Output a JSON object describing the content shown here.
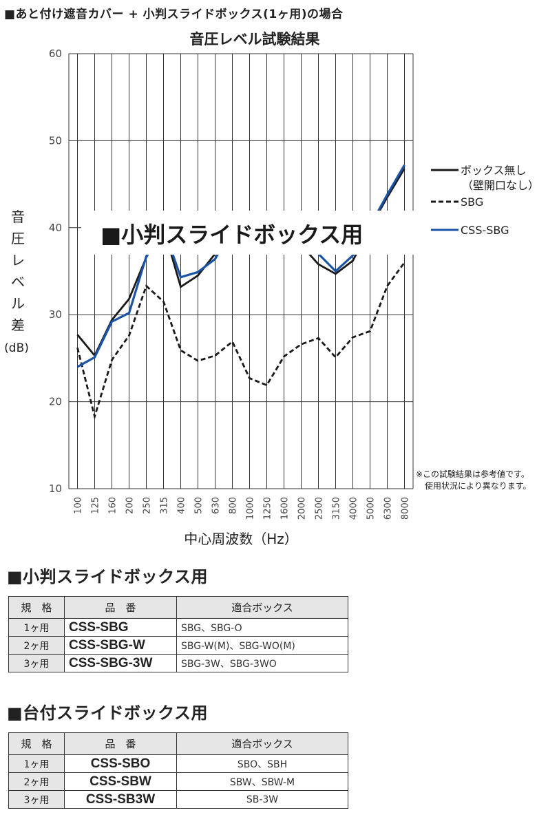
{
  "top_heading": "■あと付け遮音カバー + 小判スライドボックス(1ヶ用)の場合",
  "chart_data": {
    "type": "line",
    "title": "音圧レベル試験結果",
    "xlabel": "中心周波数（Hz）",
    "ylabel": [
      "音",
      "圧",
      "レ",
      "ベ",
      "ル",
      "差",
      "(dB)"
    ],
    "ylim": [
      10,
      60
    ],
    "yticks": [
      10,
      20,
      30,
      40,
      50,
      60
    ],
    "grid": true,
    "categories": [
      "100",
      "125",
      "160",
      "200",
      "250",
      "315",
      "400",
      "500",
      "630",
      "800",
      "1000",
      "1250",
      "1600",
      "2000",
      "2500",
      "3150",
      "4000",
      "5000",
      "6300",
      "8000"
    ],
    "series": [
      {
        "name": "ボックス無し\n（壁開口なし）",
        "legend_lines": [
          "ボックス無し",
          "（壁開口なし）"
        ],
        "style": "solid",
        "color": "#1a1a1a",
        "values": [
          27.7,
          25.3,
          29.4,
          31.8,
          36.6,
          40.0,
          33.2,
          34.5,
          37.0,
          40.0,
          41.0,
          40.0,
          39.0,
          38.0,
          35.8,
          34.7,
          36.2,
          40.0,
          43.5,
          46.8
        ]
      },
      {
        "name": "SBG",
        "legend_lines": [
          "SBG"
        ],
        "style": "dashed",
        "color": "#1a1a1a",
        "values": [
          26.2,
          18.3,
          24.8,
          27.6,
          33.3,
          31.5,
          25.9,
          24.7,
          25.3,
          26.9,
          22.7,
          21.9,
          25.2,
          26.6,
          27.3,
          25.1,
          27.4,
          28.1,
          33.3,
          36.0
        ]
      },
      {
        "name": "CSS-SBG",
        "legend_lines": [
          "CSS-SBG"
        ],
        "style": "solid",
        "color": "#1b54a6",
        "values": [
          24.0,
          25.1,
          29.2,
          30.2,
          36.7,
          40.0,
          34.3,
          34.9,
          36.4,
          40.0,
          41.0,
          40.0,
          39.0,
          38.0,
          37.0,
          35.0,
          36.8,
          40.2,
          43.8,
          47.2
        ]
      }
    ],
    "overlay_label": "■小判スライドボックス用",
    "note": [
      "※この試験結果は参考値です。",
      "使用状況により異なります。"
    ]
  },
  "section1": {
    "title": "■小判スライドボックス用",
    "headers": [
      "規　格",
      "品　番",
      "適合ボックス"
    ],
    "rows": [
      {
        "size": "1ヶ用",
        "model": "CSS-SBG",
        "boxes": "SBG、SBG-O"
      },
      {
        "size": "2ヶ用",
        "model": "CSS-SBG-W",
        "boxes": "SBG-W(M)、SBG-WO(M)"
      },
      {
        "size": "3ヶ用",
        "model": "CSS-SBG-3W",
        "boxes": "SBG-3W、SBG-3WO"
      }
    ]
  },
  "section2": {
    "title": "■台付スライドボックス用",
    "headers": [
      "規　格",
      "品　番",
      "適合ボックス"
    ],
    "rows": [
      {
        "size": "1ヶ用",
        "model": "CSS-SBO",
        "boxes": "SBO、SBH"
      },
      {
        "size": "2ヶ用",
        "model": "CSS-SBW",
        "boxes": "SBW、SBW-M"
      },
      {
        "size": "3ヶ用",
        "model": "CSS-SB3W",
        "boxes": "SB-3W"
      }
    ]
  }
}
